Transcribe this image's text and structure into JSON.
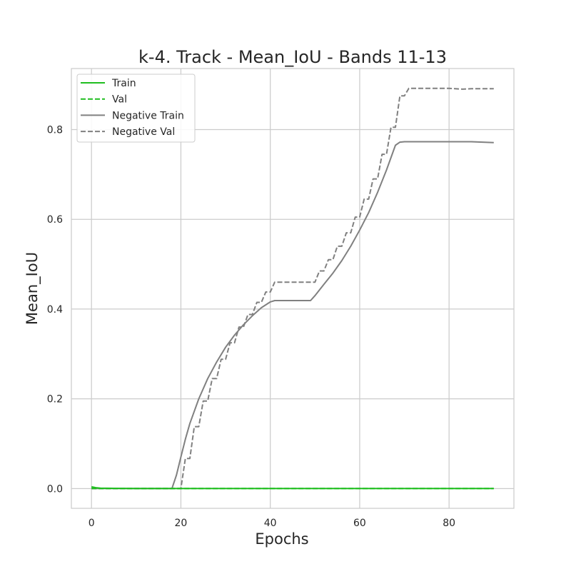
{
  "chart_data": {
    "type": "line",
    "title": "k-4. Track - Mean_IoU - Bands 11-13",
    "xlabel": "Epochs",
    "ylabel": "Mean_IoU",
    "xlim": [
      -4.5,
      94.5
    ],
    "ylim": [
      -0.044,
      0.936
    ],
    "xticks": [
      0,
      20,
      40,
      60,
      80
    ],
    "yticks": [
      0.0,
      0.2,
      0.4,
      0.6,
      0.8
    ],
    "xtick_labels": [
      "0",
      "20",
      "40",
      "60",
      "80"
    ],
    "ytick_labels": [
      "0.0",
      "0.2",
      "0.4",
      "0.6",
      "0.8"
    ],
    "grid": true,
    "legend_position": "top-left",
    "series": [
      {
        "name": "Train",
        "color": "#1fbe1f",
        "style": "solid",
        "x": [
          0,
          1,
          2,
          5,
          10,
          20,
          30,
          40,
          50,
          60,
          70,
          80,
          90
        ],
        "y": [
          0.004,
          0.002,
          0.001,
          0.0005,
          0.0003,
          0.0002,
          0.0002,
          0.0002,
          0.0002,
          0.0002,
          0.0002,
          0.0002,
          0.0002
        ]
      },
      {
        "name": "Val",
        "color": "#1fbe1f",
        "style": "dashed",
        "x": [
          0,
          10,
          20,
          30,
          40,
          50,
          60,
          70,
          80,
          90
        ],
        "y": [
          0.0,
          0.0,
          0.0,
          0.0,
          0.0,
          0.0,
          0.0,
          0.0,
          0.0,
          0.0
        ]
      },
      {
        "name": "Negative Train",
        "color": "#808080",
        "style": "solid",
        "x": [
          0,
          18,
          19,
          20,
          21,
          22,
          24,
          26,
          28,
          30,
          32,
          34,
          36,
          38,
          40,
          41,
          45,
          49,
          50,
          52,
          54,
          56,
          58,
          60,
          62,
          64,
          66,
          68,
          69,
          70,
          75,
          80,
          85,
          90
        ],
        "y": [
          0.0,
          0.0,
          0.03,
          0.07,
          0.11,
          0.145,
          0.2,
          0.245,
          0.282,
          0.315,
          0.342,
          0.365,
          0.385,
          0.403,
          0.416,
          0.419,
          0.419,
          0.419,
          0.43,
          0.455,
          0.48,
          0.508,
          0.54,
          0.576,
          0.615,
          0.66,
          0.71,
          0.765,
          0.772,
          0.773,
          0.773,
          0.773,
          0.773,
          0.771
        ]
      },
      {
        "name": "Negative Val",
        "color": "#808080",
        "style": "dashed",
        "x": [
          0,
          20,
          21,
          22,
          23,
          24,
          25,
          26,
          27,
          28,
          29,
          30,
          31,
          32,
          33,
          34,
          35,
          36,
          37,
          38,
          39,
          40,
          41,
          45,
          50,
          51,
          52,
          53,
          54,
          55,
          56,
          57,
          58,
          59,
          60,
          61,
          62,
          63,
          64,
          65,
          66,
          67,
          68,
          69,
          70,
          71,
          75,
          80,
          83,
          85,
          90
        ],
        "y": [
          0.0,
          0.0,
          0.067,
          0.067,
          0.138,
          0.138,
          0.195,
          0.195,
          0.245,
          0.245,
          0.288,
          0.288,
          0.325,
          0.325,
          0.36,
          0.36,
          0.388,
          0.388,
          0.415,
          0.415,
          0.438,
          0.438,
          0.46,
          0.46,
          0.46,
          0.485,
          0.485,
          0.51,
          0.51,
          0.54,
          0.54,
          0.57,
          0.57,
          0.605,
          0.605,
          0.645,
          0.645,
          0.69,
          0.69,
          0.745,
          0.745,
          0.805,
          0.805,
          0.875,
          0.875,
          0.892,
          0.892,
          0.892,
          0.89,
          0.891,
          0.891
        ]
      }
    ]
  }
}
